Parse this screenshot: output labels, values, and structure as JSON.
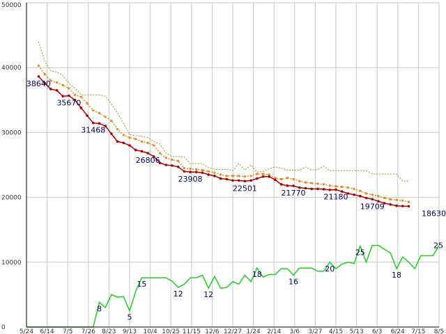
{
  "chart_data": {
    "type": "line",
    "title": "",
    "xlabel": "",
    "ylabel": "",
    "ylim": [
      0,
      50000
    ],
    "yticks": [
      0,
      10000,
      20000,
      30000,
      40000,
      50000
    ],
    "x_tick_labels": [
      "5/24",
      "6/14",
      "7/5",
      "7/26",
      "8/23",
      "9/13",
      "10/4",
      "10/25",
      "11/15",
      "12/6",
      "12/27",
      "1/24",
      "2/14",
      "3/6",
      "3/27",
      "4/15",
      "5/13",
      "6/3",
      "6/24",
      "7/15",
      "8/5"
    ],
    "grid": true,
    "legend": "none",
    "colors": {
      "series_red": "#aa0000",
      "series_orange": "#e08a20",
      "series_olive": "#9a8c1a",
      "series_green": "#22cc22",
      "grid": "#c8c8c8",
      "axis": "#000000",
      "label": "#000060"
    },
    "series": [
      {
        "key": "red",
        "start": 2,
        "values": [
          38640,
          37600,
          36700,
          36500,
          35600,
          35670,
          35000,
          33800,
          32600,
          31468,
          31400,
          31000,
          29800,
          28600,
          28400,
          28000,
          27300,
          27100,
          26806,
          26300,
          25300,
          25000,
          24900,
          24700,
          24000,
          23908,
          23900,
          23800,
          23500,
          23300,
          22900,
          22800,
          22600,
          22600,
          22501,
          22600,
          22900,
          23200,
          23200,
          22700,
          22000,
          21800,
          21770,
          21500,
          21400,
          21300,
          21300,
          21250,
          21150,
          21180,
          20900,
          20600,
          20400,
          20200,
          19900,
          19709,
          19400,
          19100,
          18900,
          18700,
          18650,
          18630
        ]
      },
      {
        "key": "orange",
        "start": 2,
        "values": [
          40300,
          39000,
          38000,
          37700,
          37300,
          36800,
          35800,
          35500,
          34500,
          33400,
          33000,
          32400,
          31800,
          30500,
          29600,
          29200,
          29000,
          28600,
          28400,
          28000,
          26800,
          26100,
          25800,
          25600,
          24500,
          24400,
          24300,
          24200,
          24000,
          23800,
          23500,
          23300,
          23300,
          23300,
          23200,
          23300,
          23600,
          23600,
          23500,
          23000,
          22800,
          23000,
          22800,
          22500,
          22300,
          22200,
          22100,
          22000,
          21800,
          21700,
          21600,
          21500,
          21300,
          21000,
          20600,
          20400,
          20200,
          19900,
          19700,
          19600,
          19500,
          19300
        ]
      },
      {
        "key": "olive",
        "start": 2,
        "values": [
          44000,
          41000,
          39500,
          39300,
          38800,
          37600,
          36800,
          35800,
          35800,
          35800,
          35800,
          35600,
          34400,
          33000,
          31400,
          29700,
          29500,
          29400,
          29200,
          28600,
          28200,
          26800,
          26300,
          26300,
          26200,
          25200,
          25200,
          25200,
          24600,
          24300,
          24300,
          24300,
          24100,
          25200,
          24200,
          25000,
          23900,
          24000,
          24400,
          24700,
          24500,
          24200,
          24200,
          24200,
          24700,
          24200,
          24300,
          24800,
          24100,
          24100,
          24100,
          24100,
          24100,
          24100,
          24100,
          23600,
          23600,
          23600,
          23600,
          23600,
          22500,
          22500
        ]
      },
      {
        "key": "green",
        "start": 0,
        "values": [
          0,
          0,
          0,
          0,
          0,
          0,
          0,
          0,
          0,
          0,
          0,
          0,
          3800,
          3000,
          5000,
          4600,
          4700,
          2500,
          5500,
          7600,
          7600,
          7600,
          7600,
          7600,
          7100,
          6100,
          6600,
          7600,
          7600,
          8000,
          6000,
          7800,
          6000,
          6100,
          7000,
          6600,
          8000,
          7000,
          9100,
          7700,
          8100,
          8100,
          9000,
          9000,
          8000,
          9100,
          9100,
          9100,
          8600,
          8600,
          10000,
          9000,
          9700,
          10000,
          9800,
          12500,
          10000,
          12600,
          12600,
          12000,
          11400,
          9000,
          10800,
          10000,
          9000,
          11000,
          11000,
          11000,
          12600
        ]
      }
    ],
    "data_labels": [
      {
        "series": "red",
        "index": 0,
        "text": "38640"
      },
      {
        "series": "red",
        "index": 5,
        "text": "35670"
      },
      {
        "series": "red",
        "index": 9,
        "text": "31468"
      },
      {
        "series": "red",
        "index": 18,
        "text": "26806"
      },
      {
        "series": "red",
        "index": 25,
        "text": "23908"
      },
      {
        "series": "red",
        "index": 34,
        "text": "22501"
      },
      {
        "series": "red",
        "index": 42,
        "text": "21770"
      },
      {
        "series": "red",
        "index": 49,
        "text": "21180"
      },
      {
        "series": "red",
        "index": 55,
        "text": "19709"
      },
      {
        "series": "red",
        "index": 61,
        "text": "18630"
      },
      {
        "series": "green",
        "index": 12,
        "text": "8"
      },
      {
        "series": "green",
        "index": 17,
        "text": "5"
      },
      {
        "series": "green",
        "index": 19,
        "text": "15"
      },
      {
        "series": "green",
        "index": 25,
        "text": "12"
      },
      {
        "series": "green",
        "index": 30,
        "text": "12"
      },
      {
        "series": "green",
        "index": 38,
        "text": "18"
      },
      {
        "series": "green",
        "index": 44,
        "text": "16"
      },
      {
        "series": "green",
        "index": 50,
        "text": "20"
      },
      {
        "series": "green",
        "index": 55,
        "text": "25"
      },
      {
        "series": "green",
        "index": 61,
        "text": "18"
      },
      {
        "series": "green",
        "index": 68,
        "text": "25"
      }
    ]
  }
}
